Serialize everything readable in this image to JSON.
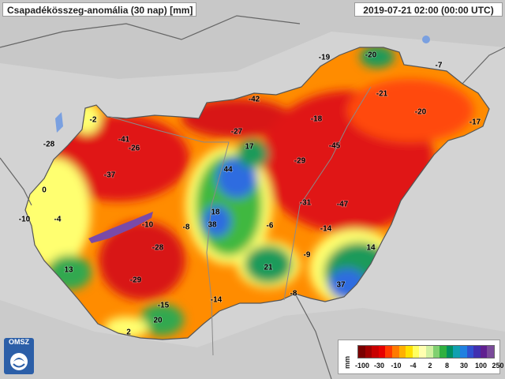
{
  "header": {
    "title": "Csapadékösszeg-anomália (30 nap) [mm]",
    "timestamp": "2019-07-21 02:00 (00:00 UTC)"
  },
  "map": {
    "labels": [
      {
        "text": "-19"
      },
      {
        "text": "-20"
      },
      {
        "text": "-7"
      },
      {
        "text": "-42"
      },
      {
        "text": "-21"
      },
      {
        "text": "-20"
      },
      {
        "text": "-17"
      },
      {
        "text": "-2"
      },
      {
        "text": "-18"
      },
      {
        "text": "-27"
      },
      {
        "text": "-28"
      },
      {
        "text": "-41"
      },
      {
        "text": "-26"
      },
      {
        "text": "17"
      },
      {
        "text": "-45"
      },
      {
        "text": "-29"
      },
      {
        "text": "-37"
      },
      {
        "text": "44"
      },
      {
        "text": "0"
      },
      {
        "text": "-31"
      },
      {
        "text": "-47"
      },
      {
        "text": "-10"
      },
      {
        "text": "-4"
      },
      {
        "text": "18"
      },
      {
        "text": "-10"
      },
      {
        "text": "-8"
      },
      {
        "text": "38"
      },
      {
        "text": "-6"
      },
      {
        "text": "-14"
      },
      {
        "text": "-28"
      },
      {
        "text": "14"
      },
      {
        "text": "-9"
      },
      {
        "text": "13"
      },
      {
        "text": "21"
      },
      {
        "text": "-29"
      },
      {
        "text": "37"
      },
      {
        "text": "-8"
      },
      {
        "text": "-14"
      },
      {
        "text": "-15"
      },
      {
        "text": "20"
      },
      {
        "text": "2"
      }
    ]
  },
  "legend": {
    "unit": "mm",
    "colors": [
      "#7a0000",
      "#a00000",
      "#c80000",
      "#e60000",
      "#ff3a00",
      "#ff7a00",
      "#ffb000",
      "#ffe000",
      "#ffff60",
      "#ffffb0",
      "#d0f0a0",
      "#80d070",
      "#30b040",
      "#009060",
      "#10a0b0",
      "#2080e0",
      "#3050d0",
      "#4030b0",
      "#602090",
      "#7a4a9a"
    ],
    "ticks": [
      "-100",
      "-30",
      "-10",
      "-4",
      "2",
      "8",
      "30",
      "100",
      "250"
    ]
  },
  "logo": {
    "text": "OMSZ"
  },
  "colors": {
    "strong_deficit": "#e41b1b",
    "deficit": "#ff7a00",
    "normal": "#ffff66",
    "surplus": "#1e9a5a",
    "high_surplus": "#2f6ce0"
  }
}
